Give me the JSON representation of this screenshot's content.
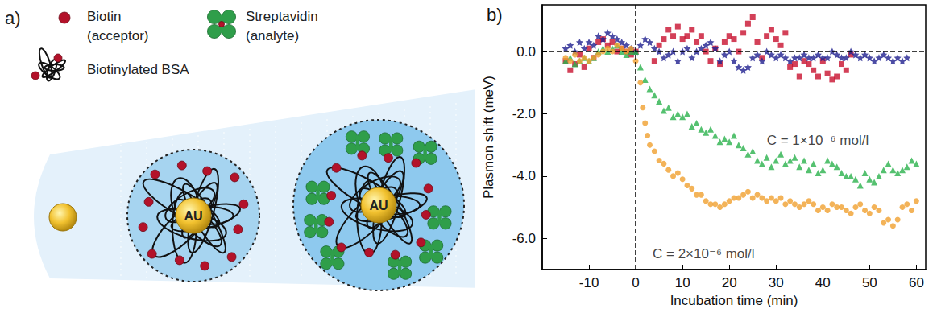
{
  "panel_labels": [
    "a)",
    "b)"
  ],
  "diagram": {
    "legend": [
      {
        "item": "biotin",
        "lines": [
          "Biotin",
          "(acceptor)"
        ]
      },
      {
        "item": "streptavidin",
        "lines": [
          "Streptavidin",
          "(analyte)"
        ]
      },
      {
        "item": "bsa",
        "lines": [
          "Biotinylated BSA"
        ]
      }
    ],
    "particles": [
      {
        "label": "AU"
      },
      {
        "label": "AU"
      }
    ]
  },
  "chart_data": {
    "type": "scatter",
    "x_label": "Incubation time (min)",
    "y_label": "Plasmon shift (meV)",
    "xlim": [
      -20,
      62
    ],
    "xticks": [
      -10,
      0,
      10,
      20,
      30,
      40,
      50,
      60
    ],
    "ylim": [
      -7,
      1.5
    ],
    "yticks": [
      {
        "value": 0,
        "label": "0.0"
      },
      {
        "value": -2,
        "label": "-2.0"
      },
      {
        "value": -4,
        "label": "-4.0"
      },
      {
        "value": -6,
        "label": "-6.0"
      }
    ],
    "grid": false,
    "ref_x": 0,
    "ref_y": 0,
    "annotations": [
      {
        "text": "C = 1×10⁻⁶ mol/l",
        "x": 28,
        "y": -2.85
      },
      {
        "text": "C = 2×10⁻⁶ mol/l",
        "x": 3.6,
        "y": -6.5
      }
    ],
    "series": [
      {
        "color": "#c8102e",
        "marker": "square",
        "x": [
          -15,
          -14,
          -13,
          -12,
          -11,
          -10,
          -9,
          -8,
          -7,
          -6,
          -5,
          -4,
          -3,
          -2,
          -1,
          0,
          4,
          5,
          6,
          7,
          8,
          9,
          10,
          11,
          12,
          13,
          14,
          15,
          16,
          17,
          18,
          19,
          20,
          21,
          22,
          23,
          24,
          25,
          26,
          27,
          28,
          29,
          30,
          31,
          32,
          33,
          34,
          35,
          36,
          37,
          38,
          39,
          40,
          41,
          42,
          43,
          44,
          45,
          46
        ],
        "values": [
          -0.3,
          -0.6,
          -0.4,
          -0.1,
          -0.5,
          0.1,
          -0.2,
          0.3,
          0.4,
          0.2,
          0.3,
          0.0,
          0.1,
          0.0,
          -0.1,
          0.0,
          -0.3,
          0.2,
          0.4,
          0.7,
          0.5,
          0.8,
          0.4,
          0.5,
          0.7,
          0.3,
          0.5,
          0.0,
          -0.3,
          0.1,
          -0.4,
          0.3,
          0.5,
          0.4,
          0.0,
          0.6,
          0.9,
          1.1,
          0.3,
          -0.2,
          0.5,
          0.7,
          0.4,
          0.2,
          0.6,
          -0.5,
          -0.4,
          -0.8,
          -0.3,
          -0.4,
          -0.6,
          -0.8,
          -0.3,
          -0.7,
          -0.9,
          -0.8,
          -0.4,
          -0.6,
          -0.1
        ]
      },
      {
        "color": "#1f1f8f",
        "marker": "star",
        "x": [
          -15,
          -14,
          -13,
          -12,
          -11,
          -10,
          -9,
          -8,
          -7,
          -6,
          -5,
          -4,
          -3,
          -2,
          -1,
          0,
          1,
          2,
          3,
          4,
          5,
          6,
          7,
          8,
          9,
          10,
          11,
          12,
          13,
          14,
          15,
          16,
          17,
          18,
          19,
          20,
          21,
          22,
          23,
          24,
          25,
          26,
          27,
          28,
          29,
          30,
          31,
          32,
          33,
          34,
          35,
          36,
          37,
          38,
          39,
          40,
          41,
          42,
          43,
          44,
          45,
          46,
          47,
          48,
          49,
          50,
          51,
          52,
          53,
          54,
          55,
          56,
          57,
          58
        ],
        "values": [
          0.1,
          0.2,
          0.0,
          0.3,
          0.1,
          0.3,
          0.2,
          0.5,
          0.4,
          0.6,
          0.5,
          0.4,
          0.3,
          0.2,
          0.1,
          0.0,
          0.2,
          0.4,
          0.3,
          0.1,
          0.0,
          -0.2,
          -0.1,
          0.0,
          -0.3,
          0.0,
          0.1,
          -0.2,
          0.0,
          0.1,
          0.2,
          0.3,
          0.1,
          -0.3,
          -0.1,
          0.0,
          -0.3,
          -0.5,
          -0.6,
          -0.5,
          -0.2,
          -0.1,
          -0.3,
          0.0,
          -0.1,
          -0.2,
          -0.1,
          -0.2,
          -0.3,
          -0.2,
          -0.2,
          -0.1,
          -0.2,
          -0.2,
          -0.1,
          -0.2,
          -0.2,
          0.0,
          -0.1,
          -0.2,
          -0.2,
          0.0,
          -0.1,
          -0.2,
          -0.1,
          -0.2,
          -0.3,
          -0.2,
          -0.1,
          -0.2,
          -0.3,
          -0.2,
          -0.3,
          -0.2
        ]
      },
      {
        "color": "#2bb24c",
        "marker": "triangle",
        "x": [
          -15,
          -14,
          -13,
          -12,
          -11,
          -10,
          -9,
          -8,
          -7,
          -6,
          -5,
          -4,
          -3,
          -2,
          -1,
          0,
          1,
          2,
          3,
          4,
          5,
          6,
          7,
          8,
          9,
          10,
          11,
          12,
          13,
          14,
          15,
          16,
          17,
          18,
          19,
          20,
          21,
          22,
          23,
          24,
          25,
          26,
          27,
          28,
          29,
          30,
          31,
          32,
          33,
          34,
          35,
          36,
          37,
          38,
          39,
          40,
          41,
          42,
          43,
          44,
          45,
          46,
          47,
          48,
          49,
          50,
          51,
          52,
          53,
          54,
          55,
          56,
          57,
          58,
          59,
          60
        ],
        "values": [
          -0.3,
          -0.2,
          -0.4,
          -0.3,
          -0.2,
          -0.3,
          -0.2,
          0.0,
          0.1,
          0.0,
          0.1,
          0.2,
          0.0,
          -0.1,
          0.0,
          0.0,
          -0.5,
          -0.9,
          -1.2,
          -1.4,
          -1.6,
          -1.9,
          -1.8,
          -2.1,
          -2.0,
          -2.1,
          -2.0,
          -2.4,
          -2.3,
          -2.5,
          -2.6,
          -2.5,
          -2.7,
          -2.9,
          -2.8,
          -2.9,
          -2.7,
          -3.0,
          -3.1,
          -3.3,
          -3.2,
          -3.5,
          -3.6,
          -3.4,
          -3.7,
          -3.5,
          -3.3,
          -3.6,
          -3.5,
          -3.4,
          -3.7,
          -3.5,
          -3.8,
          -3.6,
          -3.9,
          -3.8,
          -3.5,
          -3.6,
          -3.7,
          -3.9,
          -4.0,
          -4.0,
          -4.1,
          -4.3,
          -3.9,
          -4.1,
          -4.2,
          -4.0,
          -3.8,
          -3.6,
          -3.8,
          -3.9,
          -3.8,
          -3.7,
          -3.5,
          -3.6
        ]
      },
      {
        "color": "#f0a030",
        "marker": "circle",
        "x": [
          -15,
          -14,
          -13,
          -12,
          -11,
          -10,
          -9,
          -8,
          -7,
          -6,
          -5,
          -4,
          -3,
          -2,
          -1,
          0,
          1,
          1.5,
          2,
          2.5,
          3,
          4,
          5,
          6,
          7,
          8,
          9,
          10,
          11,
          12,
          13,
          14,
          15,
          16,
          17,
          18,
          19,
          20,
          21,
          22,
          23,
          24,
          25,
          26,
          27,
          28,
          29,
          30,
          31,
          32,
          33,
          34,
          35,
          36,
          37,
          38,
          39,
          40,
          41,
          42,
          43,
          44,
          45,
          46,
          47,
          48,
          49,
          50,
          51,
          52,
          53,
          54,
          55,
          56,
          57,
          58,
          59,
          60
        ],
        "values": [
          -0.2,
          -0.3,
          -0.1,
          -0.3,
          -0.2,
          -0.3,
          -0.2,
          -0.1,
          0.0,
          0.1,
          0.0,
          0.2,
          0.1,
          0.0,
          0.1,
          -0.3,
          -1.0,
          -1.8,
          -2.3,
          -2.7,
          -3.0,
          -3.2,
          -3.5,
          -3.6,
          -3.8,
          -4.0,
          -3.9,
          -4.1,
          -4.3,
          -4.4,
          -4.6,
          -4.6,
          -4.8,
          -4.9,
          -4.9,
          -5.0,
          -4.9,
          -4.8,
          -4.7,
          -4.7,
          -4.6,
          -4.5,
          -4.7,
          -4.6,
          -4.7,
          -4.8,
          -4.7,
          -4.8,
          -4.7,
          -4.9,
          -4.8,
          -4.9,
          -5.0,
          -4.9,
          -4.8,
          -4.9,
          -5.1,
          -5.0,
          -5.1,
          -4.9,
          -5.0,
          -5.0,
          -5.1,
          -5.2,
          -5.0,
          -4.9,
          -5.1,
          -5.2,
          -5.0,
          -5.1,
          -5.5,
          -5.4,
          -5.6,
          -5.4,
          -5.0,
          -4.9,
          -5.1,
          -4.8
        ]
      }
    ]
  }
}
